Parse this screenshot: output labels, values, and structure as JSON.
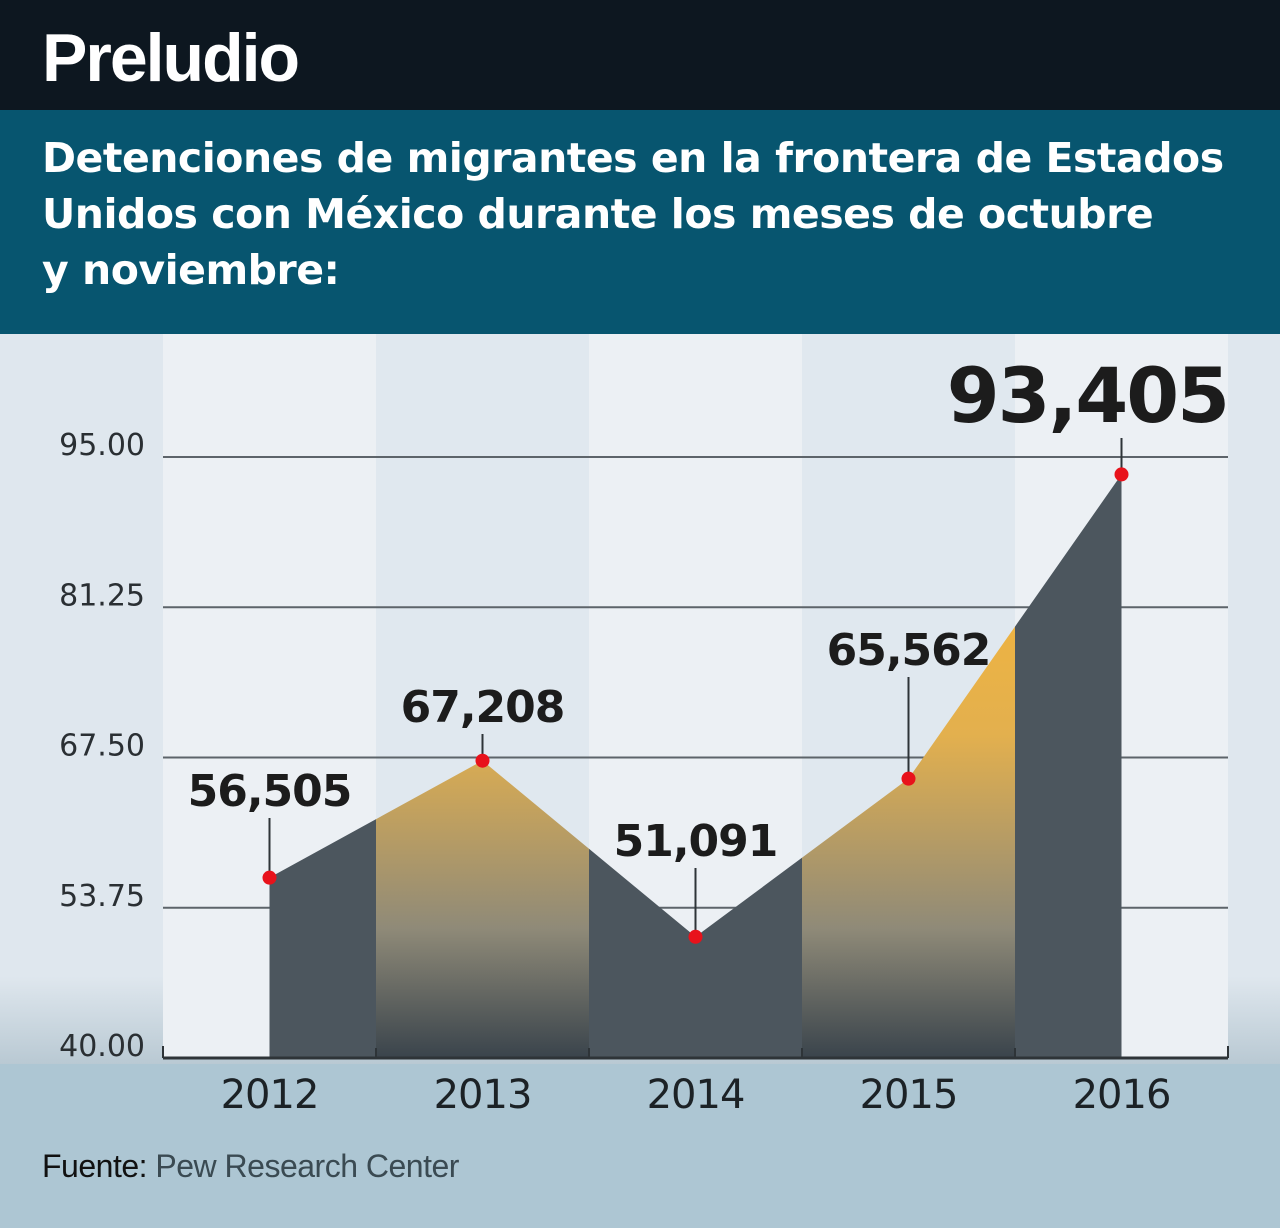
{
  "header": {
    "brand": "Preludio"
  },
  "subtitle_lines": [
    "Detenciones de migrantes en la frontera de Estados",
    "Unidos con México durante los meses de octubre",
    "y noviembre:"
  ],
  "source": {
    "label": "Fuente:",
    "value": "Pew Research Center"
  },
  "colors": {
    "header_bg": "#0d1720",
    "subhead_bg": "#07556f",
    "area_top": "#fbb733",
    "area_bottom": "#3f4a52",
    "marker": "#e8121b",
    "footer_bg": "#adc6d3"
  },
  "chart_data": {
    "type": "area",
    "title": "Detenciones de migrantes en la frontera de Estados Unidos con México durante los meses de octubre y noviembre:",
    "xlabel": "",
    "ylabel": "",
    "categories": [
      "2012",
      "2013",
      "2014",
      "2015",
      "2016"
    ],
    "series": [
      {
        "name": "Detenciones",
        "values": [
          56505,
          67208,
          51091,
          65562,
          93405
        ],
        "labels": [
          "56,505",
          "67,208",
          "51,091",
          "65,562",
          "93,405"
        ]
      }
    ],
    "yticks": [
      40.0,
      53.75,
      67.5,
      81.25,
      95.0
    ],
    "ytick_labels": [
      "40.00",
      "53.75",
      "67.50",
      "81.25",
      "95.00"
    ],
    "y_units": "thousands",
    "ylim": [
      40,
      95
    ],
    "grid": true,
    "legend": "none",
    "highlight_label_index": 4
  }
}
